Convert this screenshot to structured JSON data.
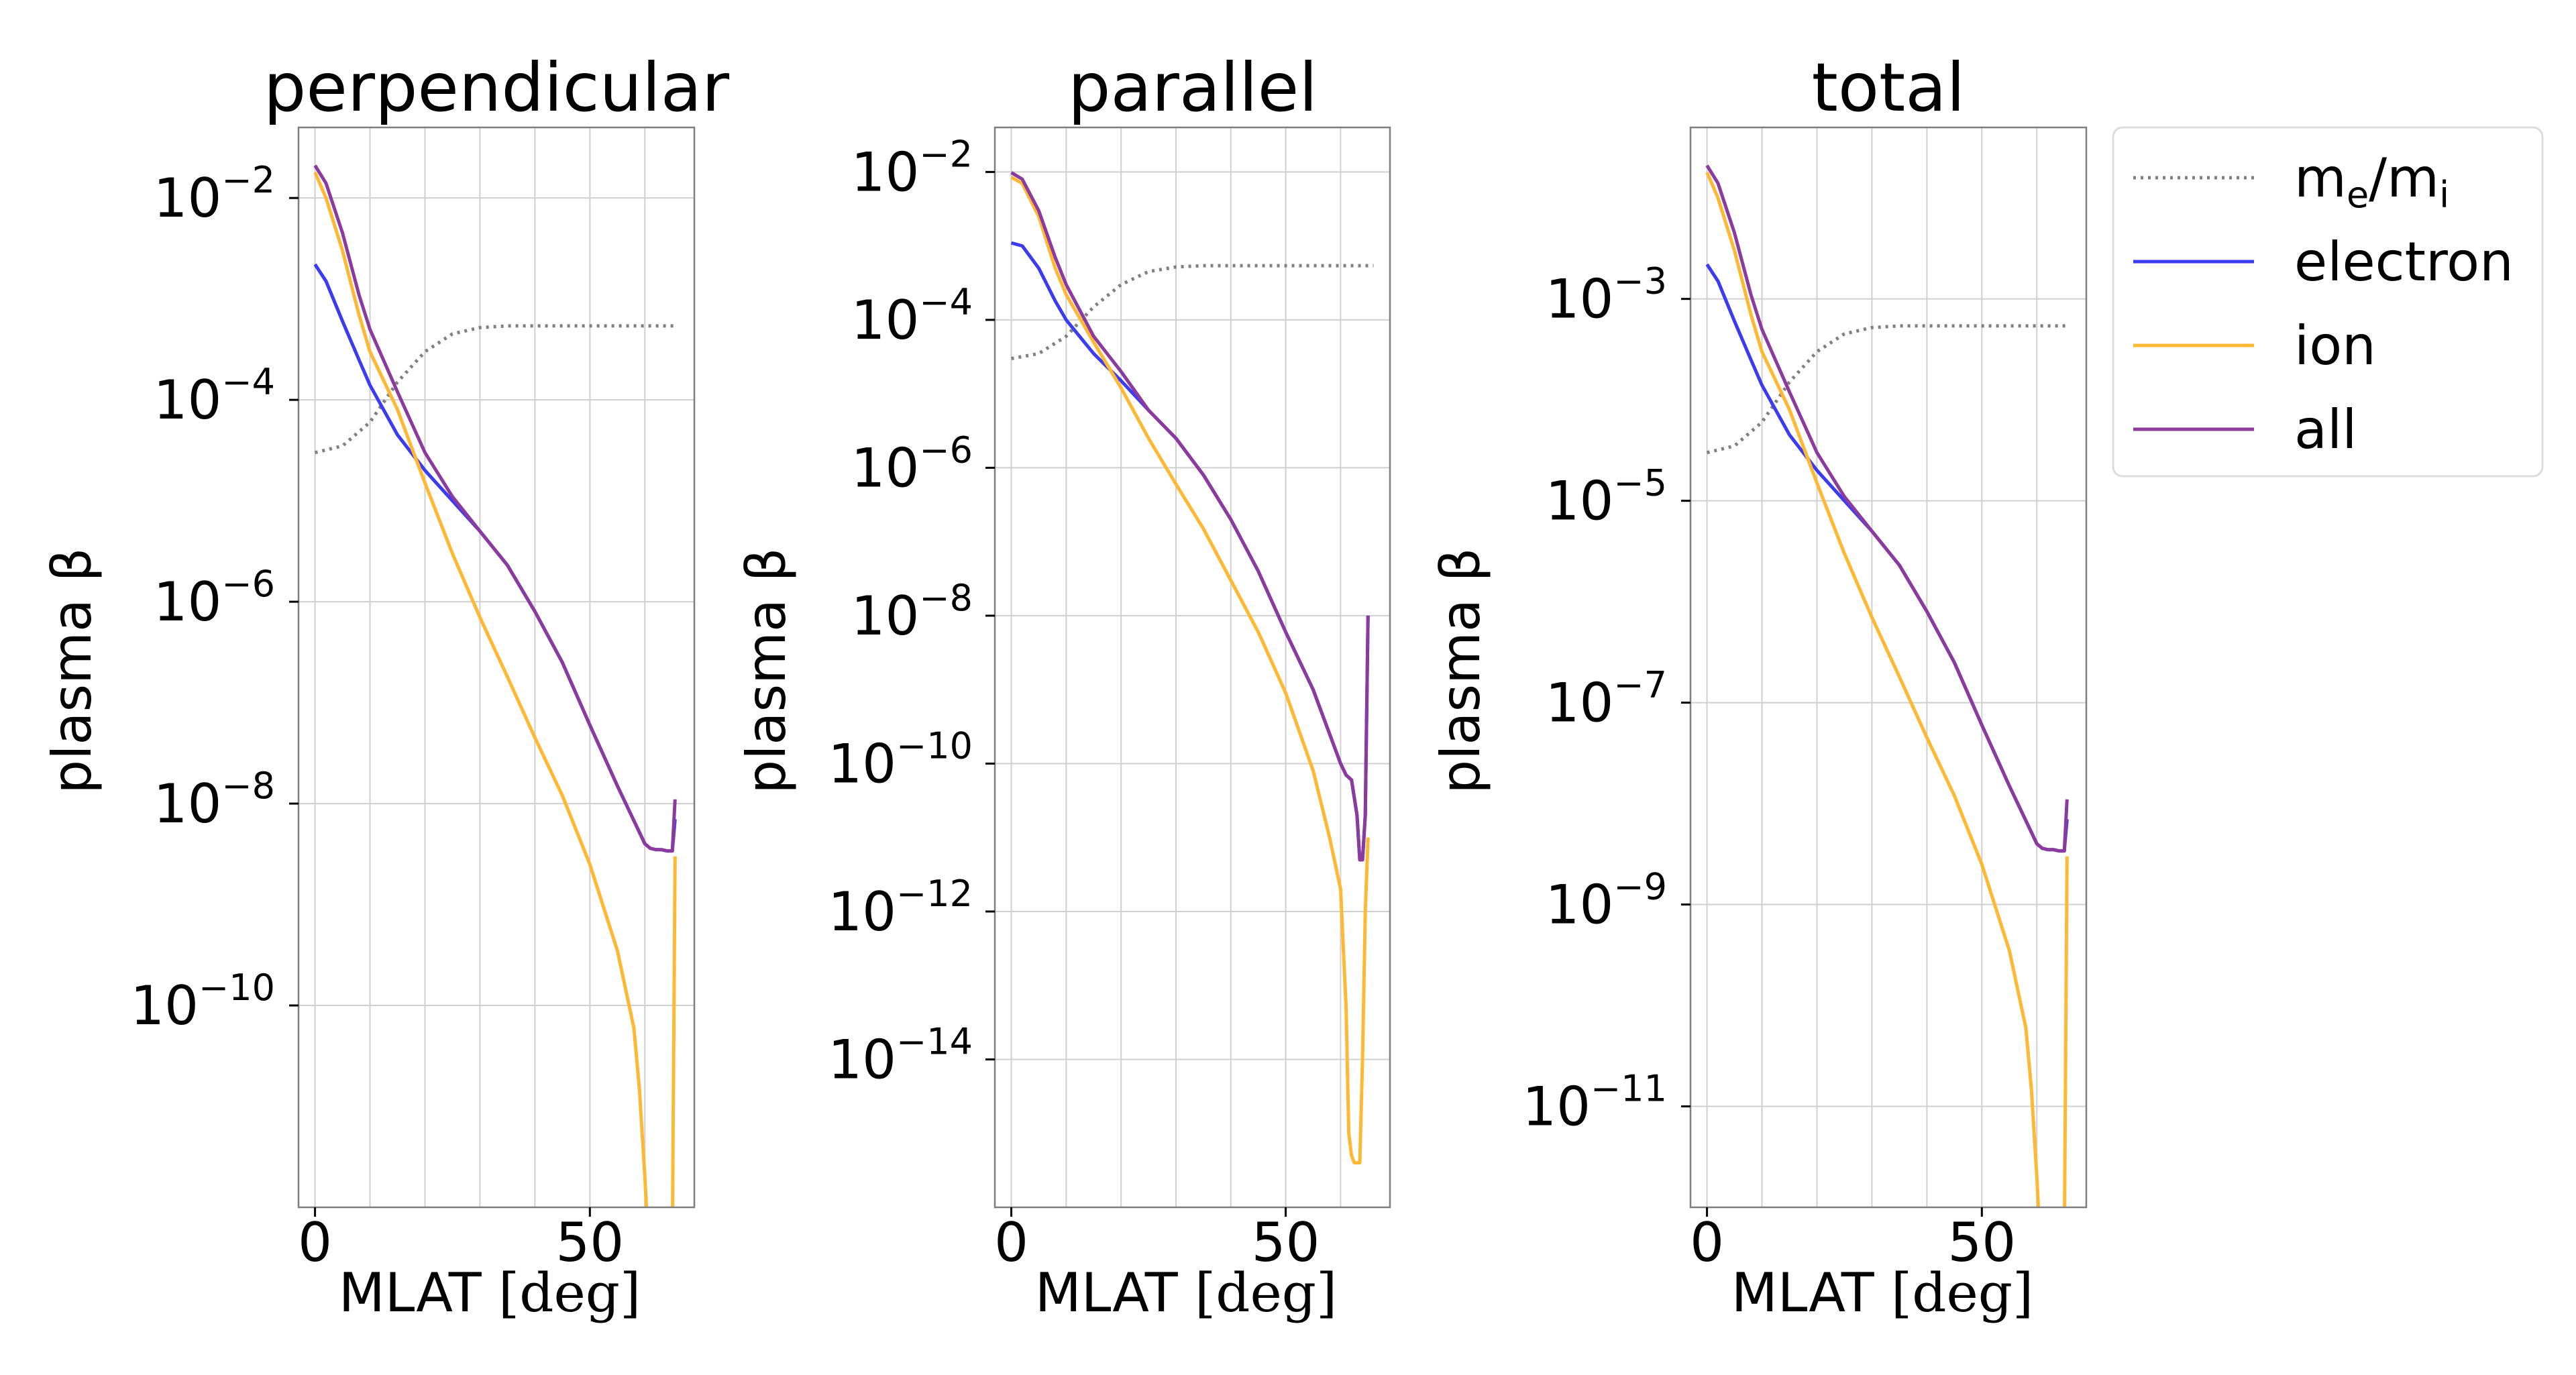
{
  "chart_data": [
    {
      "type": "line",
      "title": "perpendicular",
      "xlabel": "MLAT",
      "xunit": "[deg]",
      "ylabel": "plasma β",
      "yscale": "log",
      "xlim": [
        -3,
        69
      ],
      "ylim": [
        1e-12,
        0.05
      ],
      "xticks": [
        0,
        50
      ],
      "xtick_labels": [
        "0",
        "50"
      ],
      "xgrid": [
        0,
        10,
        20,
        30,
        40,
        50,
        60
      ],
      "yticks": [
        {
          "value": 0.01,
          "base": "10",
          "exp": "−2"
        },
        {
          "value": 0.0001,
          "base": "10",
          "exp": "−4"
        },
        {
          "value": 1e-06,
          "base": "10",
          "exp": "−6"
        },
        {
          "value": 1e-08,
          "base": "10",
          "exp": "−8"
        },
        {
          "value": 1e-10,
          "base": "10",
          "exp": "−10"
        }
      ],
      "grid": true,
      "series": [
        {
          "name": "me/mi",
          "color": "#808080",
          "style": "dotted",
          "x": [
            0,
            5,
            10,
            15,
            20,
            25,
            30,
            35,
            40,
            50,
            60,
            66
          ],
          "y": [
            3e-05,
            3.5e-05,
            6e-05,
            0.00015,
            0.0003,
            0.00045,
            0.00052,
            0.00054,
            0.00054,
            0.00054,
            0.00054,
            0.00054
          ]
        },
        {
          "name": "electron",
          "color": "#3b3bf0",
          "style": "solid",
          "x": [
            0,
            2,
            5,
            8,
            10,
            15,
            20,
            25,
            30,
            35,
            40,
            45,
            50,
            55,
            60,
            61,
            62,
            63,
            64,
            64.5,
            65,
            65.5
          ],
          "y": [
            0.0022,
            0.0015,
            0.0006,
            0.00025,
            0.00014,
            4.5e-05,
            2e-05,
            1e-05,
            5e-06,
            2.3e-06,
            8e-07,
            2.5e-07,
            6e-08,
            1.5e-08,
            4e-09,
            3.6e-09,
            3.5e-09,
            3.5e-09,
            3.4e-09,
            3.4e-09,
            3.4e-09,
            7e-09
          ]
        },
        {
          "name": "ion",
          "color": "#ffb833",
          "style": "solid",
          "x": [
            0,
            2,
            5,
            8,
            10,
            15,
            20,
            25,
            30,
            35,
            40,
            45,
            50,
            55,
            58,
            59,
            60,
            60.5,
            61,
            62,
            63,
            64,
            65,
            65.5
          ],
          "y": [
            0.018,
            0.01,
            0.003,
            0.0007,
            0.0003,
            8e-05,
            1.5e-05,
            3e-06,
            7e-07,
            1.8e-07,
            4.5e-08,
            1.2e-08,
            2.5e-09,
            3.5e-10,
            6e-11,
            1.5e-11,
            2e-12,
            6e-13,
            4e-13,
            4e-13,
            4e-13,
            4e-13,
            4e-13,
            3e-09
          ]
        },
        {
          "name": "all",
          "color": "#8b3a9e",
          "style": "solid",
          "x": [
            0,
            2,
            5,
            8,
            10,
            15,
            20,
            25,
            30,
            35,
            40,
            45,
            50,
            55,
            60,
            61,
            62,
            63,
            64,
            64.5,
            65,
            65.5
          ],
          "y": [
            0.021,
            0.014,
            0.0045,
            0.0011,
            0.0005,
            0.00012,
            3e-05,
            1.1e-05,
            5e-06,
            2.3e-06,
            8e-07,
            2.5e-07,
            6e-08,
            1.5e-08,
            4e-09,
            3.6e-09,
            3.5e-09,
            3.5e-09,
            3.4e-09,
            3.4e-09,
            3.4e-09,
            1.1e-08
          ]
        }
      ]
    },
    {
      "type": "line",
      "title": "parallel",
      "xlabel": "MLAT",
      "xunit": "[deg]",
      "ylabel": "plasma β",
      "yscale": "log",
      "xlim": [
        -3,
        69
      ],
      "ylim": [
        1e-16,
        0.04
      ],
      "xticks": [
        0,
        50
      ],
      "xtick_labels": [
        "0",
        "50"
      ],
      "xgrid": [
        0,
        10,
        20,
        30,
        40,
        50,
        60
      ],
      "yticks": [
        {
          "value": 0.01,
          "base": "10",
          "exp": "−2"
        },
        {
          "value": 0.0001,
          "base": "10",
          "exp": "−4"
        },
        {
          "value": 1e-06,
          "base": "10",
          "exp": "−6"
        },
        {
          "value": 1e-08,
          "base": "10",
          "exp": "−8"
        },
        {
          "value": 1e-10,
          "base": "10",
          "exp": "−10"
        },
        {
          "value": 1e-12,
          "base": "10",
          "exp": "−12"
        },
        {
          "value": 1e-14,
          "base": "10",
          "exp": "−14"
        }
      ],
      "grid": true,
      "series": [
        {
          "name": "me/mi",
          "color": "#808080",
          "style": "dotted",
          "x": [
            0,
            5,
            10,
            15,
            20,
            25,
            30,
            35,
            40,
            50,
            60,
            66
          ],
          "y": [
            3e-05,
            3.5e-05,
            6e-05,
            0.00015,
            0.0003,
            0.00045,
            0.00052,
            0.00054,
            0.00054,
            0.00054,
            0.00054,
            0.00054
          ]
        },
        {
          "name": "electron",
          "color": "#3b3bf0",
          "style": "solid",
          "x": [
            0,
            2,
            5,
            8,
            10,
            15,
            20,
            25,
            30,
            35,
            40,
            45,
            50,
            55,
            60,
            61,
            62,
            63,
            63.5,
            64,
            64.5,
            65
          ],
          "y": [
            0.0011,
            0.001,
            0.0005,
            0.00018,
            0.0001,
            3.5e-05,
            1.5e-05,
            6e-06,
            2.5e-06,
            8e-07,
            2e-07,
            4e-08,
            6e-09,
            1e-09,
            1e-10,
            7e-11,
            6e-11,
            2e-11,
            5e-12,
            5e-12,
            2e-11,
            1e-08
          ]
        },
        {
          "name": "ion",
          "color": "#ffb833",
          "style": "solid",
          "x": [
            0,
            2,
            5,
            8,
            10,
            15,
            20,
            25,
            30,
            35,
            40,
            45,
            50,
            55,
            58,
            60,
            61,
            61.5,
            62,
            62.5,
            63,
            63.5,
            64,
            64.5,
            65
          ],
          "y": [
            0.0085,
            0.007,
            0.0025,
            0.0005,
            0.00022,
            5e-05,
            1.2e-05,
            2.5e-06,
            6e-07,
            1.5e-07,
            3e-08,
            6e-09,
            9e-10,
            8e-11,
            1e-11,
            2e-12,
            5e-14,
            1e-15,
            5e-16,
            4e-16,
            4e-16,
            4e-16,
            1e-14,
            1e-12,
            1e-11
          ]
        },
        {
          "name": "all",
          "color": "#8b3a9e",
          "style": "solid",
          "x": [
            0,
            2,
            5,
            8,
            10,
            15,
            20,
            25,
            30,
            35,
            40,
            45,
            50,
            55,
            60,
            61,
            62,
            63,
            63.5,
            64,
            64.5,
            65
          ],
          "y": [
            0.0098,
            0.008,
            0.003,
            0.0007,
            0.0003,
            6e-05,
            2e-05,
            6e-06,
            2.5e-06,
            8e-07,
            2e-07,
            4e-08,
            6e-09,
            1e-09,
            1e-10,
            7e-11,
            6e-11,
            2e-11,
            5e-12,
            5e-12,
            2e-11,
            1e-08
          ]
        }
      ]
    },
    {
      "type": "line",
      "title": "total",
      "xlabel": "MLAT",
      "xunit": "[deg]",
      "ylabel": "plasma β",
      "yscale": "log",
      "xlim": [
        -3,
        69
      ],
      "ylim": [
        1e-12,
        0.05
      ],
      "xticks": [
        0,
        50
      ],
      "xtick_labels": [
        "0",
        "50"
      ],
      "xgrid": [
        0,
        10,
        20,
        30,
        40,
        50,
        60
      ],
      "yticks": [
        {
          "value": 0.001,
          "base": "10",
          "exp": "−3"
        },
        {
          "value": 1e-05,
          "base": "10",
          "exp": "−5"
        },
        {
          "value": 1e-07,
          "base": "10",
          "exp": "−7"
        },
        {
          "value": 1e-09,
          "base": "10",
          "exp": "−9"
        },
        {
          "value": 1e-11,
          "base": "10",
          "exp": "−11"
        }
      ],
      "grid": true,
      "series": [
        {
          "name": "me/mi",
          "color": "#808080",
          "style": "dotted",
          "x": [
            0,
            5,
            10,
            15,
            20,
            25,
            30,
            35,
            40,
            50,
            60,
            66
          ],
          "y": [
            3e-05,
            3.5e-05,
            6e-05,
            0.00015,
            0.0003,
            0.00045,
            0.00052,
            0.00054,
            0.00054,
            0.00054,
            0.00054,
            0.00054
          ]
        },
        {
          "name": "electron",
          "color": "#3b3bf0",
          "style": "solid",
          "x": [
            0,
            2,
            5,
            8,
            10,
            15,
            20,
            25,
            30,
            35,
            40,
            45,
            50,
            55,
            60,
            61,
            62,
            63,
            64,
            64.5,
            65,
            65.5
          ],
          "y": [
            0.0022,
            0.0015,
            0.0006,
            0.00025,
            0.00014,
            4.5e-05,
            2e-05,
            1e-05,
            5e-06,
            2.3e-06,
            8e-07,
            2.5e-07,
            6e-08,
            1.5e-08,
            4e-09,
            3.6e-09,
            3.5e-09,
            3.5e-09,
            3.4e-09,
            3.4e-09,
            3.4e-09,
            7e-09
          ]
        },
        {
          "name": "ion",
          "color": "#ffb833",
          "style": "solid",
          "x": [
            0,
            2,
            5,
            8,
            10,
            15,
            20,
            25,
            30,
            35,
            40,
            45,
            50,
            55,
            58,
            59,
            60,
            60.5,
            61,
            62,
            63,
            64,
            65,
            65.5
          ],
          "y": [
            0.018,
            0.01,
            0.003,
            0.0007,
            0.0003,
            8e-05,
            1.5e-05,
            3e-06,
            7e-07,
            1.8e-07,
            4.5e-08,
            1.2e-08,
            2.5e-09,
            3.5e-10,
            6e-11,
            1.5e-11,
            2e-12,
            6e-13,
            4e-13,
            4e-13,
            4e-13,
            4e-13,
            4e-13,
            3e-09
          ]
        },
        {
          "name": "all",
          "color": "#8b3a9e",
          "style": "solid",
          "x": [
            0,
            2,
            5,
            8,
            10,
            15,
            20,
            25,
            30,
            35,
            40,
            45,
            50,
            55,
            60,
            61,
            62,
            63,
            64,
            64.5,
            65,
            65.5
          ],
          "y": [
            0.021,
            0.014,
            0.0045,
            0.0011,
            0.0005,
            0.00012,
            3e-05,
            1.1e-05,
            5e-06,
            2.3e-06,
            8e-07,
            2.5e-07,
            6e-08,
            1.5e-08,
            4e-09,
            3.6e-09,
            3.5e-09,
            3.5e-09,
            3.4e-09,
            3.4e-09,
            3.4e-09,
            1.1e-08
          ]
        }
      ]
    }
  ],
  "legend": {
    "placement": "outside-right-top",
    "items": [
      {
        "label": "m",
        "sub1": "e",
        "mid": "/m",
        "sub2": "i",
        "color": "#808080",
        "style": "dotted"
      },
      {
        "label": "electron",
        "color": "#3b3bf0",
        "style": "solid"
      },
      {
        "label": "ion",
        "color": "#ffb833",
        "style": "solid"
      },
      {
        "label": "all",
        "color": "#8b3a9e",
        "style": "solid"
      }
    ]
  }
}
